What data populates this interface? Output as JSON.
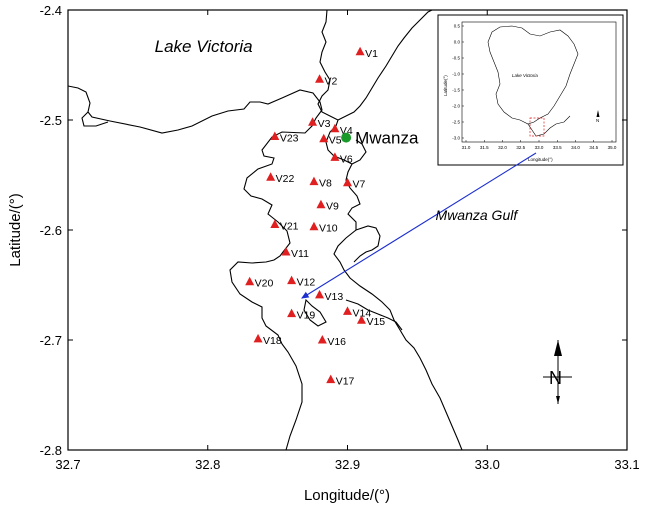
{
  "chart_data": {
    "type": "scatter",
    "title": "",
    "xlabel": "Longitude/(°)",
    "ylabel": "Latitude/(°)",
    "xlim": [
      32.7,
      33.1
    ],
    "ylim": [
      -2.8,
      -2.4
    ],
    "xticks": [
      32.7,
      32.8,
      32.9,
      33.0,
      33.1
    ],
    "xtick_labels": [
      "32.7",
      "32.8",
      "32.9",
      "33.0",
      "33.1"
    ],
    "yticks": [
      -2.4,
      -2.5,
      -2.6,
      -2.7,
      -2.8
    ],
    "ytick_labels": [
      "-2.4",
      "-2.5",
      "-2.6",
      "-2.7",
      "-2.8"
    ],
    "grid": false,
    "series": [
      {
        "marker": "triangle",
        "color": "#e02020",
        "points": [
          {
            "label": "V1",
            "x": 32.909,
            "y": -2.438
          },
          {
            "label": "V2",
            "x": 32.88,
            "y": -2.463
          },
          {
            "label": "V3",
            "x": 32.875,
            "y": -2.502
          },
          {
            "label": "V4",
            "x": 32.891,
            "y": -2.508
          },
          {
            "label": "V5",
            "x": 32.883,
            "y": -2.517
          },
          {
            "label": "V6",
            "x": 32.891,
            "y": -2.534
          },
          {
            "label": "V7",
            "x": 32.9,
            "y": -2.557
          },
          {
            "label": "V8",
            "x": 32.876,
            "y": -2.556
          },
          {
            "label": "V9",
            "x": 32.881,
            "y": -2.577
          },
          {
            "label": "V10",
            "x": 32.876,
            "y": -2.597
          },
          {
            "label": "V11",
            "x": 32.856,
            "y": -2.62
          },
          {
            "label": "V12",
            "x": 32.86,
            "y": -2.646
          },
          {
            "label": "V13",
            "x": 32.88,
            "y": -2.659
          },
          {
            "label": "V14",
            "x": 32.9,
            "y": -2.674
          },
          {
            "label": "V15",
            "x": 32.91,
            "y": -2.682
          },
          {
            "label": "V16",
            "x": 32.882,
            "y": -2.7
          },
          {
            "label": "V17",
            "x": 32.888,
            "y": -2.736
          },
          {
            "label": "V18",
            "x": 32.836,
            "y": -2.699
          },
          {
            "label": "V19",
            "x": 32.86,
            "y": -2.676
          },
          {
            "label": "V20",
            "x": 32.83,
            "y": -2.647
          },
          {
            "label": "V21",
            "x": 32.848,
            "y": -2.595
          },
          {
            "label": "V22",
            "x": 32.845,
            "y": -2.552
          },
          {
            "label": "V23",
            "x": 32.848,
            "y": -2.515
          }
        ]
      },
      {
        "name": "Mwanza",
        "marker": "circle",
        "color": "#1a9a2a",
        "points": [
          {
            "label": "Mwanza",
            "x": 32.899,
            "y": -2.516
          }
        ]
      }
    ],
    "annotations": [
      {
        "text": "Lake Victoria",
        "x": 32.762,
        "y": -2.438
      },
      {
        "text": "Mwanza Gulf",
        "x": 32.963,
        "y": -2.591
      }
    ]
  },
  "inset": {
    "lake_label": "Lake Victoria",
    "xlabel": "Longitude(°)",
    "ylabel": "Latitude(°)",
    "xtick_labels": [
      "31.0",
      "31.5",
      "32.0",
      "32.5",
      "33.0",
      "33.5",
      "34.0",
      "34.5",
      "35.0"
    ],
    "ytick_labels": [
      "0.5",
      "0.0",
      "-0.5",
      "-1.0",
      "-1.5",
      "-2.0",
      "-2.5",
      "-3.0"
    ],
    "north_label": "N"
  },
  "north_arrow_label": "N",
  "colors": {
    "station": "#e02020",
    "city": "#1a9a2a",
    "arrow": "#1c2fcf",
    "coast": "#000000"
  }
}
